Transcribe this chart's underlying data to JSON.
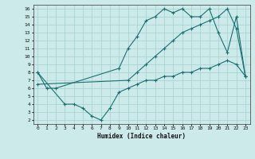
{
  "xlabel": "Humidex (Indice chaleur)",
  "bg_color": "#cceaea",
  "grid_color": "#aad4d4",
  "line_color": "#1a7070",
  "xlim": [
    -0.5,
    23.5
  ],
  "ylim": [
    1.5,
    16.5
  ],
  "xticks": [
    0,
    1,
    2,
    3,
    4,
    5,
    6,
    7,
    8,
    9,
    10,
    11,
    12,
    13,
    14,
    15,
    16,
    17,
    18,
    19,
    20,
    21,
    22,
    23
  ],
  "yticks": [
    2,
    3,
    4,
    5,
    6,
    7,
    8,
    9,
    10,
    11,
    12,
    13,
    14,
    15,
    16
  ],
  "line1_x": [
    0,
    1,
    2,
    9,
    10,
    11,
    12,
    13,
    14,
    15,
    16,
    17,
    18,
    19,
    20,
    21,
    22,
    23
  ],
  "line1_y": [
    8,
    6,
    6,
    8.5,
    11,
    12.5,
    14.5,
    15,
    16,
    15.5,
    16,
    15,
    15,
    16,
    13,
    10.5,
    15,
    7.5
  ],
  "line2_x": [
    0,
    3,
    4,
    5,
    6,
    7,
    8,
    9,
    10,
    11,
    12,
    13,
    14,
    15,
    16,
    17,
    18,
    19,
    20,
    21,
    22,
    23
  ],
  "line2_y": [
    8,
    4,
    4,
    3.5,
    2.5,
    2,
    3.5,
    5.5,
    6,
    6.5,
    7,
    7,
    7.5,
    7.5,
    8,
    8,
    8.5,
    8.5,
    9,
    9.5,
    9,
    7.5
  ],
  "line3_x": [
    0,
    10,
    11,
    12,
    13,
    14,
    15,
    16,
    17,
    18,
    19,
    20,
    21,
    22,
    23
  ],
  "line3_y": [
    6.5,
    7,
    8,
    9,
    10,
    11,
    12,
    13,
    13.5,
    14,
    14.5,
    15,
    16,
    13.5,
    7.5
  ]
}
